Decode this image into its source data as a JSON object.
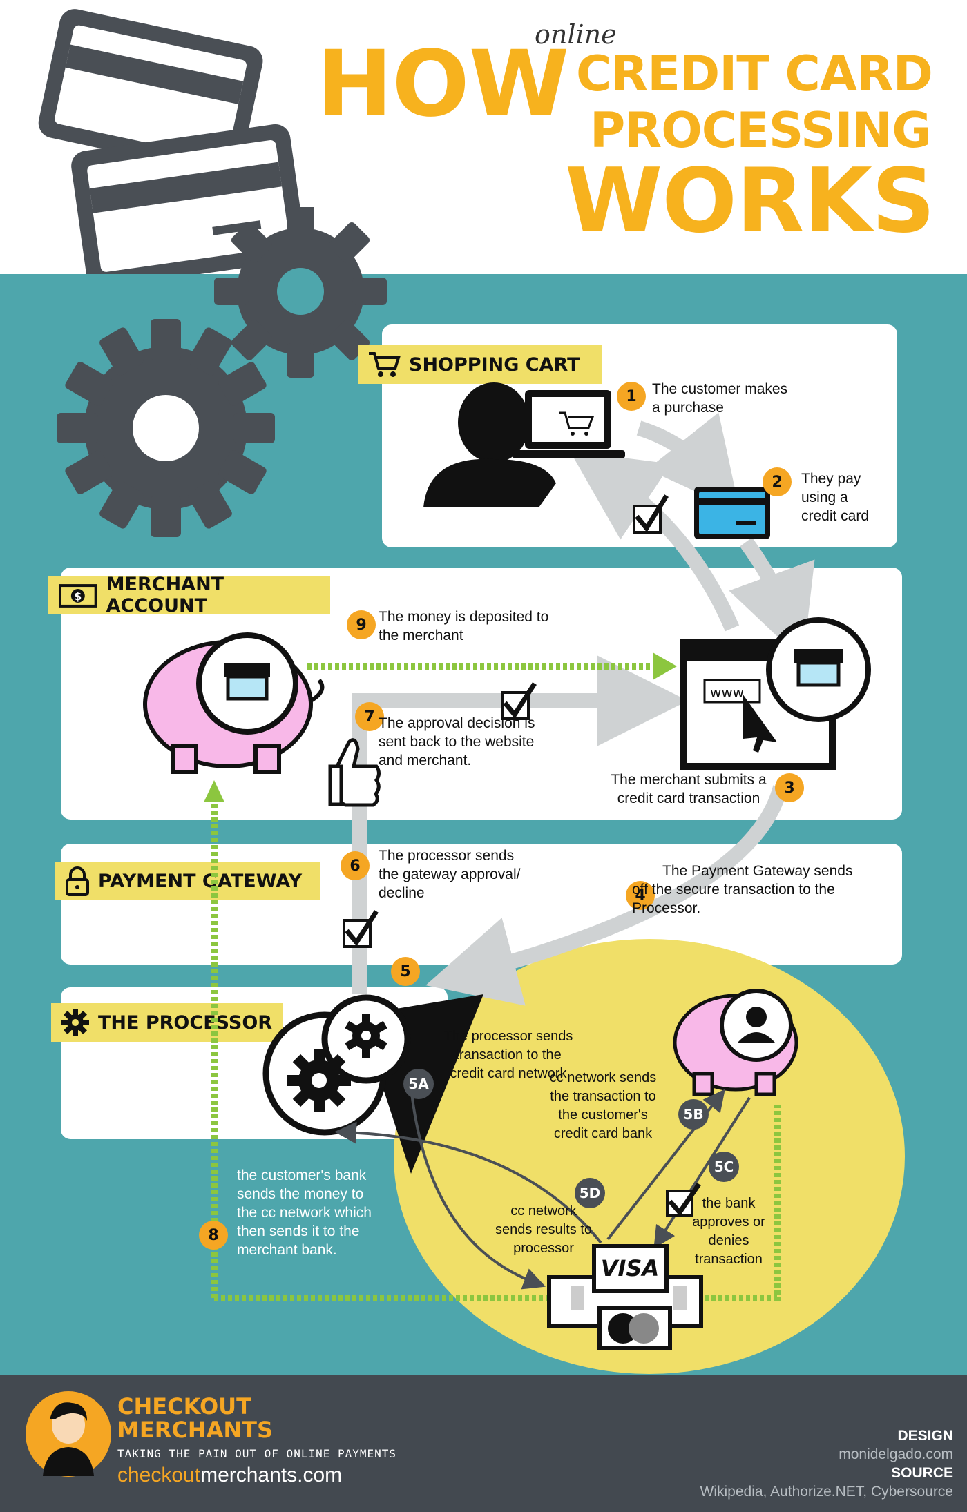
{
  "title": {
    "how": "HOW",
    "online": "online",
    "line1": "CREDIT CARD",
    "line2": "PROCESSING",
    "line3": "WORKS"
  },
  "sections": {
    "shopping_cart": "SHOPPING CART",
    "merchant_account": "MERCHANT ACCOUNT",
    "payment_gateway": "PAYMENT GATEWAY",
    "processor": "THE PROCESSOR"
  },
  "steps": [
    {
      "n": "1",
      "text": "The customer makes a purchase"
    },
    {
      "n": "2",
      "text": "They pay using a credit card"
    },
    {
      "n": "3",
      "text": "The merchant submits a credit card transaction"
    },
    {
      "n": "4",
      "text": "The Payment Gateway sends off the secure transaction to the Processor."
    },
    {
      "n": "5",
      "text": ""
    },
    {
      "n": "6",
      "text": "The processor sends the gateway approval/ decline"
    },
    {
      "n": "7",
      "text": "The approval decision is sent back to the website and merchant."
    },
    {
      "n": "8",
      "text": "the customer's bank sends the money to the cc network which then sends it to the merchant bank."
    },
    {
      "n": "9",
      "text": "The money is deposited to the merchant"
    }
  ],
  "substeps": [
    {
      "n": "5A",
      "text": "The processor sends transaction to the credit card network"
    },
    {
      "n": "5B",
      "text": "cc network sends the transaction to the customer's credit card bank"
    },
    {
      "n": "5C",
      "text": "the bank approves or denies transaction"
    },
    {
      "n": "5D",
      "text": "cc network sends results to processor"
    }
  ],
  "www": "www",
  "visa": "VISA",
  "footer": {
    "brand1": "CHECKOUT",
    "brand2": "MERCHANTS",
    "tagline": "TAKING THE PAIN OUT OF ONLINE PAYMENTS",
    "url_a": "checkout",
    "url_b": "merchants.com",
    "design_label": "DESIGN",
    "design_value": "monidelgado.com",
    "source_label": "SOURCE",
    "source_value": "Wikipedia, Authorize.NET, Cybersource"
  },
  "colors": {
    "orange": "#f7b21e",
    "teal": "#4ea6ac",
    "yellow": "#f0df68",
    "dark": "#434950",
    "pink": "#f8b8e8",
    "blue": "#3bb4e5",
    "green": "#8cc63f"
  }
}
